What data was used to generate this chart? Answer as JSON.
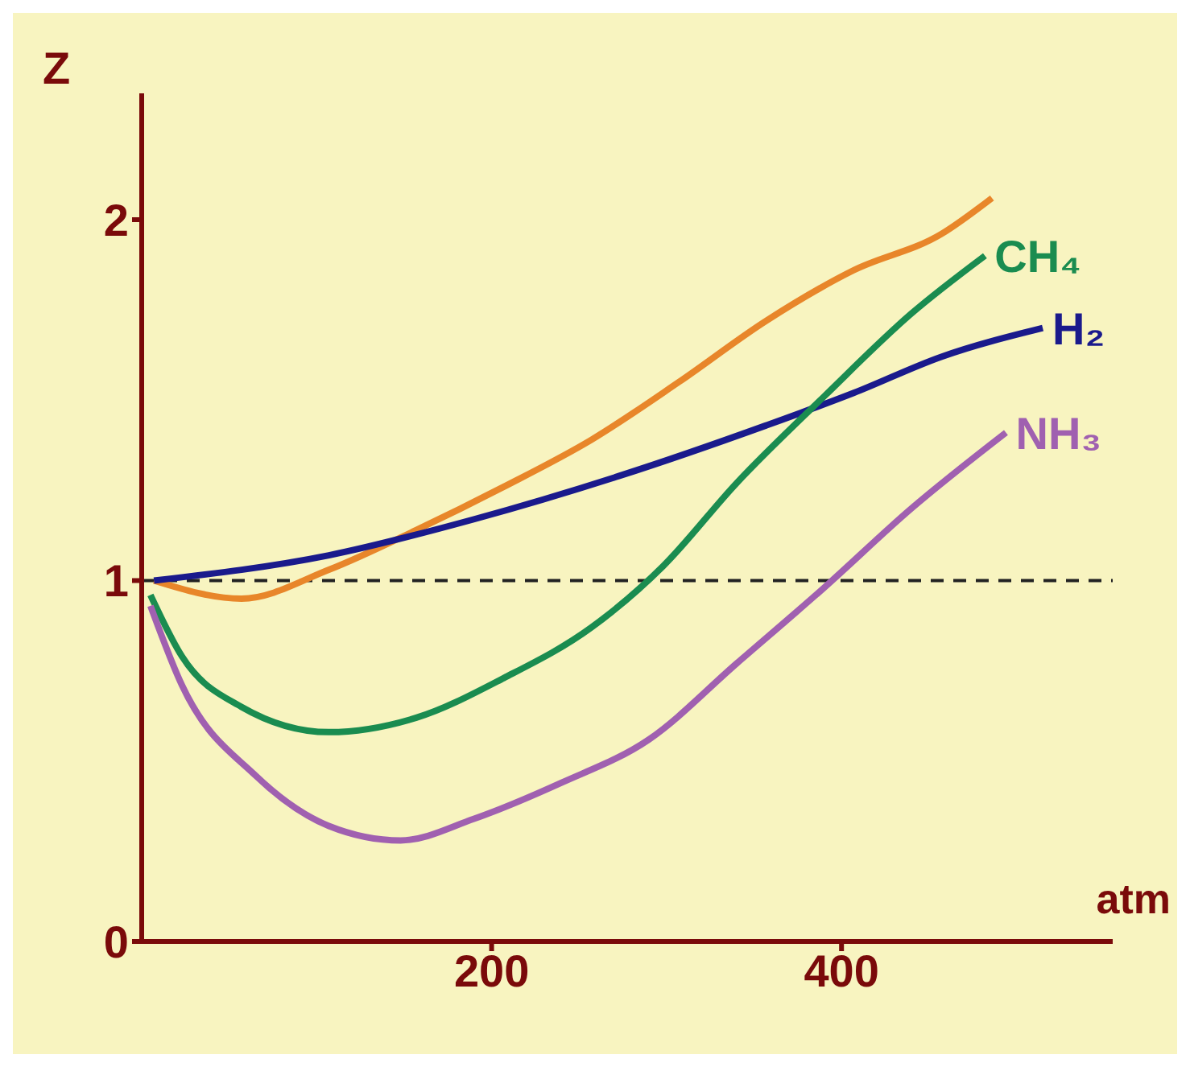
{
  "chart_data": {
    "type": "line",
    "xlabel": "atm",
    "ylabel": "Z",
    "xlim": [
      0,
      555
    ],
    "ylim": [
      0,
      2.35
    ],
    "xticks": [
      200,
      400
    ],
    "yticks": [
      0,
      1,
      2
    ],
    "grid": false,
    "legend": false,
    "marker": "none",
    "line_style": "solid",
    "ref_lines": [
      {
        "axis": "y",
        "value": 1,
        "color": "#222222",
        "line_style": "dashed"
      }
    ],
    "series": [
      {
        "color": "#e8862a",
        "x": [
          7,
          57,
          107,
          157,
          207,
          257,
          307,
          357,
          407,
          457,
          486
        ],
        "values": [
          1.0,
          0.95,
          1.03,
          1.14,
          1.26,
          1.39,
          1.55,
          1.72,
          1.86,
          1.96,
          2.06
        ]
      },
      {
        "name": "H₂",
        "color": "#1a1a8c",
        "x": [
          7,
          107,
          190,
          273,
          357,
          407,
          457,
          515
        ],
        "values": [
          1.0,
          1.07,
          1.17,
          1.29,
          1.43,
          1.52,
          1.62,
          1.7
        ]
      },
      {
        "name": "CH₄",
        "color": "#1a8c50",
        "x": [
          5,
          23,
          57,
          107,
          157,
          207,
          257,
          298,
          340,
          390,
          440,
          482
        ],
        "values": [
          0.96,
          0.79,
          0.65,
          0.58,
          0.62,
          0.73,
          0.87,
          1.04,
          1.27,
          1.51,
          1.74,
          1.9
        ]
      },
      {
        "name": "NH₃",
        "color": "#a060b0",
        "x": [
          5,
          23,
          65,
          107,
          148,
          190,
          240,
          290,
          340,
          390,
          440,
          494
        ],
        "values": [
          0.93,
          0.71,
          0.46,
          0.32,
          0.28,
          0.34,
          0.44,
          0.56,
          0.77,
          0.98,
          1.2,
          1.41
        ]
      }
    ]
  }
}
